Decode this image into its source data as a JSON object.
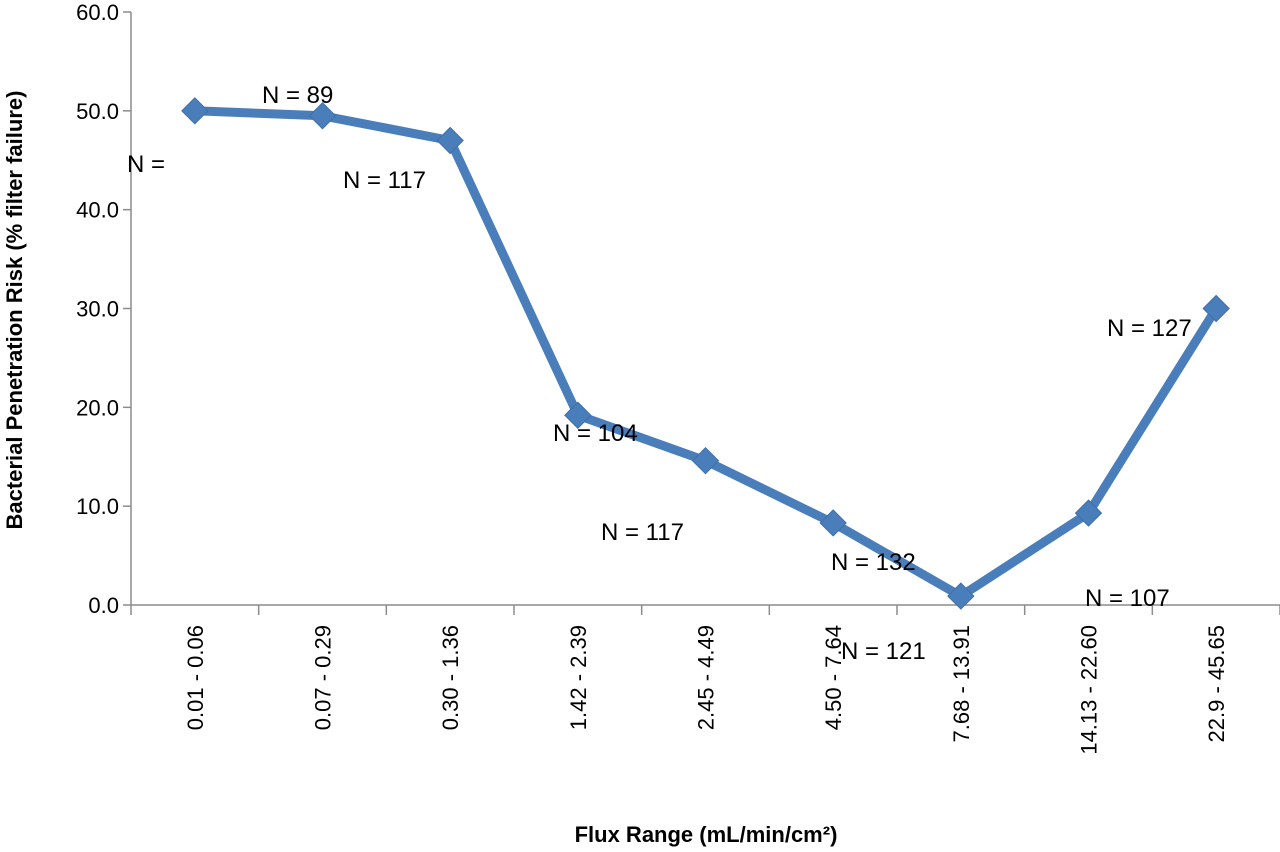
{
  "chart_data": {
    "type": "line",
    "title": "",
    "xlabel": "Flux Range (mL/min/cm²)",
    "ylabel": "Bacterial Penetration Risk (% filter failure)",
    "ylim": [
      0,
      60
    ],
    "y_ticks": [
      "0.0",
      "10.0",
      "20.0",
      "30.0",
      "40.0",
      "50.0",
      "60.0"
    ],
    "grid": false,
    "legend": "none",
    "categories": [
      "0.01 - 0.06",
      "0.07 - 0.29",
      "0.30 - 1.36",
      "1.42 - 2.39",
      "2.45 - 4.49",
      "4.50 - 7.64",
      "7.68 - 13.91",
      "14.13 - 22.60",
      "22.9 - 45.65"
    ],
    "series": [
      {
        "values": [
          50.0,
          49.5,
          47.0,
          19.2,
          14.6,
          8.3,
          0.9,
          9.3,
          30.0
        ],
        "color": "#4a7ebb"
      }
    ],
    "annotations": [
      "N =",
      "N = 89",
      "N = 117",
      "N = 104",
      "N = 117",
      "N = 132",
      "N = 121",
      "N = 107",
      "N = 127"
    ]
  }
}
